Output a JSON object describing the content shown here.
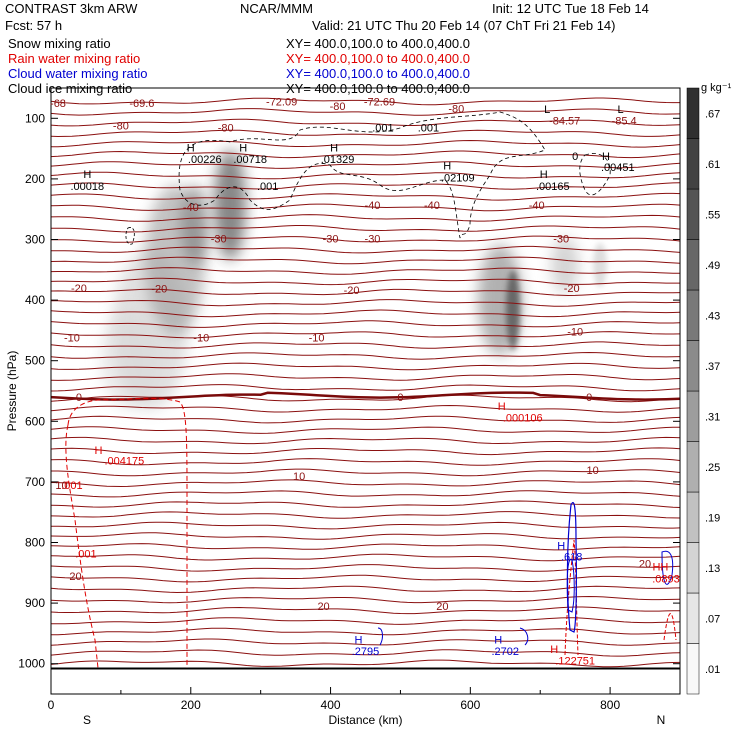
{
  "header": {
    "title_left": "CONTRAST  3km ARW",
    "title_center": "NCAR/MMM",
    "init": "Init: 12 UTC Tue 18 Feb 14",
    "fcst": "Fcst:   57 h",
    "valid": "Valid: 21 UTC Thu 20 Feb 14 (07 ChT Fri 21 Feb 14)"
  },
  "legend": [
    {
      "name": "Snow mixing ratio",
      "xy": "XY=  400.0,100.0 to 400.0,400.0",
      "color": "#000000"
    },
    {
      "name": "Rain water mixing ratio",
      "xy": "XY=  400.0,100.0 to 400.0,400.0",
      "color": "#e00000"
    },
    {
      "name": "Cloud water mixing ratio",
      "xy": "XY=  400.0,100.0 to 400.0,400.0",
      "color": "#0000d0"
    },
    {
      "name": "Cloud ice mixing ratio",
      "xy": "XY=  400.0,100.0 to 400.0,400.0",
      "color": "#000000"
    }
  ],
  "chart_data": {
    "type": "contour",
    "xlabel": "Distance (km)",
    "ylabel": "Pressure (hPa)",
    "xlim": [
      0,
      900
    ],
    "ylim": [
      1050,
      50
    ],
    "x_ticks": [
      "0",
      "200",
      "400",
      "600",
      "800"
    ],
    "y_ticks": [
      "100",
      "200",
      "300",
      "400",
      "500",
      "600",
      "700",
      "800",
      "900",
      "1000"
    ],
    "endpoints": {
      "left": "S",
      "right": "N"
    },
    "colorbar": {
      "unit": "g kg⁻¹",
      "levels": [
        "0.01",
        "0.07",
        "0.13",
        "0.19",
        "0.25",
        "0.31",
        "0.37",
        "0.43",
        "0.49",
        "0.55",
        "0.61",
        "0.67"
      ],
      "labels": [
        ".01",
        ".07",
        ".13",
        ".19",
        ".25",
        ".31",
        ".37",
        ".43",
        ".49",
        ".55",
        ".61",
        ".67"
      ]
    },
    "temperature_labels": [
      {
        "text": "-68",
        "x": 10,
        "p": 75
      },
      {
        "text": "-69.6",
        "x": 130,
        "p": 75
      },
      {
        "text": "-72.09",
        "x": 330,
        "p": 72
      },
      {
        "text": "-72.69",
        "x": 470,
        "p": 72
      },
      {
        "text": "-80",
        "x": 100,
        "p": 112
      },
      {
        "text": "-80",
        "x": 250,
        "p": 115
      },
      {
        "text": "-80",
        "x": 410,
        "p": 80
      },
      {
        "text": "-80",
        "x": 580,
        "p": 84
      },
      {
        "text": "-84.57",
        "x": 735,
        "p": 104
      },
      {
        "text": "-85.4",
        "x": 820,
        "p": 104
      },
      {
        "text": "-40",
        "x": 200,
        "p": 246
      },
      {
        "text": "-40",
        "x": 460,
        "p": 243
      },
      {
        "text": "-40",
        "x": 545,
        "p": 243
      },
      {
        "text": "-40",
        "x": 695,
        "p": 243
      },
      {
        "text": "-30",
        "x": 240,
        "p": 298
      },
      {
        "text": "-30",
        "x": 400,
        "p": 298
      },
      {
        "text": "-30",
        "x": 460,
        "p": 298
      },
      {
        "text": "-30",
        "x": 730,
        "p": 298
      },
      {
        "text": "-20",
        "x": 40,
        "p": 380
      },
      {
        "text": "-20",
        "x": 155,
        "p": 381
      },
      {
        "text": "-20",
        "x": 430,
        "p": 383
      },
      {
        "text": "-20",
        "x": 745,
        "p": 380
      },
      {
        "text": "-10",
        "x": 30,
        "p": 462
      },
      {
        "text": "-10",
        "x": 215,
        "p": 462
      },
      {
        "text": "-10",
        "x": 380,
        "p": 462
      },
      {
        "text": "-10",
        "x": 750,
        "p": 452
      },
      {
        "text": "0",
        "x": 40,
        "p": 560
      },
      {
        "text": "0",
        "x": 500,
        "p": 560
      },
      {
        "text": "0",
        "x": 770,
        "p": 560
      },
      {
        "text": "10",
        "x": 15,
        "p": 705
      },
      {
        "text": "10",
        "x": 355,
        "p": 690
      },
      {
        "text": "10",
        "x": 775,
        "p": 680
      },
      {
        "text": "20",
        "x": 35,
        "p": 855
      },
      {
        "text": "20",
        "x": 390,
        "p": 905
      },
      {
        "text": "20",
        "x": 560,
        "p": 905
      },
      {
        "text": "20",
        "x": 850,
        "p": 835
      }
    ],
    "snow_extrema": [
      {
        "text": "H",
        "x": 52,
        "p": 192
      },
      {
        "text": ".00018",
        "x": 52,
        "p": 212
      },
      {
        "text": "H",
        "x": 200,
        "p": 148
      },
      {
        "text": ".00226",
        "x": 220,
        "p": 167
      },
      {
        "text": "H",
        "x": 275,
        "p": 148
      },
      {
        "text": ".00718",
        "x": 285,
        "p": 167
      },
      {
        "text": "H",
        "x": 405,
        "p": 148
      },
      {
        "text": ".01329",
        "x": 410,
        "p": 167
      },
      {
        "text": "H",
        "x": 567,
        "p": 178
      },
      {
        "text": ".02109",
        "x": 582,
        "p": 198
      },
      {
        "text": "H",
        "x": 705,
        "p": 192
      },
      {
        "text": ".00165",
        "x": 718,
        "p": 212
      },
      {
        "text": "H",
        "x": 794,
        "p": 162
      },
      {
        "text": ".00451",
        "x": 811,
        "p": 180
      },
      {
        "text": "L",
        "x": 710,
        "p": 85
      },
      {
        "text": "L",
        "x": 815,
        "p": 85
      }
    ],
    "ice_labels": [
      {
        "text": ".001",
        "x": 475,
        "p": 115
      },
      {
        "text": ".001",
        "x": 540,
        "p": 115
      },
      {
        "text": ".001",
        "x": 310,
        "p": 212
      },
      {
        "text": "0",
        "x": 750,
        "p": 162
      }
    ],
    "rain_extrema": [
      {
        "text": "H",
        "x": 68,
        "p": 647
      },
      {
        "text": ".004175",
        "x": 105,
        "p": 665
      },
      {
        "text": "H",
        "x": 645,
        "p": 575
      },
      {
        "text": ".000106",
        "x": 675,
        "p": 594
      },
      {
        "text": ".001",
        "x": 30,
        "p": 705
      },
      {
        "text": ".001",
        "x": 50,
        "p": 818
      },
      {
        "text": "H",
        "x": 720,
        "p": 976
      },
      {
        "text": ".122751",
        "x": 750,
        "p": 995
      },
      {
        "text": "HH",
        "x": 872,
        "p": 840
      },
      {
        "text": ".0893",
        "x": 880,
        "p": 859
      }
    ],
    "cloud_water_extrema": [
      {
        "text": "H",
        "x": 440,
        "p": 960
      },
      {
        "text": ".2795",
        "x": 450,
        "p": 979
      },
      {
        "text": "H",
        "x": 640,
        "p": 960
      },
      {
        "text": ".2702",
        "x": 650,
        "p": 979
      },
      {
        "text": "H",
        "x": 730,
        "p": 805
      },
      {
        "text": ".618",
        "x": 745,
        "p": 823
      }
    ],
    "freezing_level_hpa": 560,
    "snow_max_gkg": 0.67
  }
}
